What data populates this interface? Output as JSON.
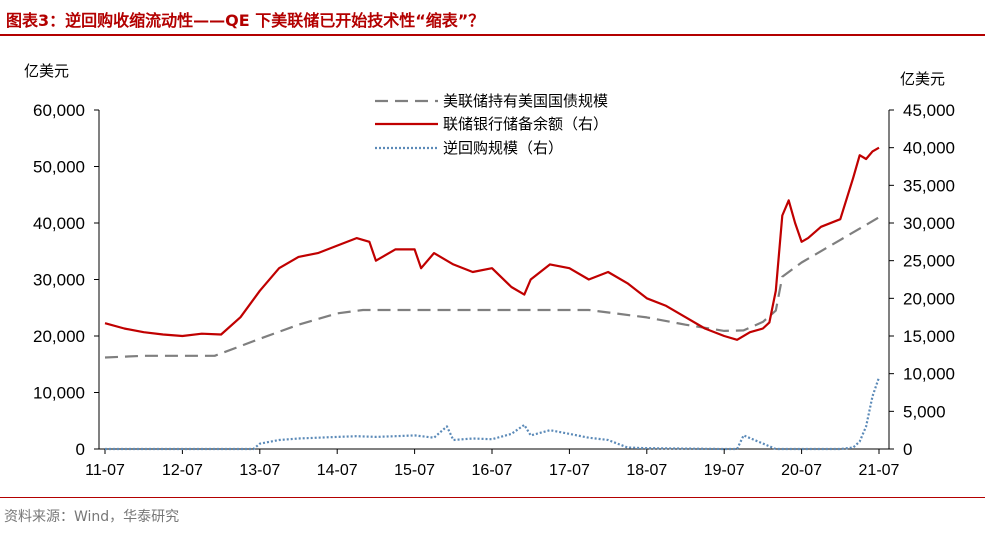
{
  "header": {
    "title": "图表3：逆回购收缩流动性——QE 下美联储已开始技术性“缩表”？"
  },
  "footer": {
    "source": "资料来源：Wind，华泰研究"
  },
  "chart_data": {
    "type": "line",
    "y_left": {
      "unit": "亿美元",
      "ylim": [
        0,
        60000
      ],
      "ticks": [
        "60,000",
        "50,000",
        "40,000",
        "30,000",
        "20,000",
        "10,000",
        "0"
      ]
    },
    "y_right": {
      "unit": "亿美元",
      "ylim": [
        0,
        45000
      ],
      "ticks": [
        "45,000",
        "40,000",
        "35,000",
        "30,000",
        "25,000",
        "20,000",
        "15,000",
        "10,000",
        "5,000",
        "0"
      ]
    },
    "x_ticks": [
      "11-07",
      "12-07",
      "13-07",
      "14-07",
      "15-07",
      "16-07",
      "17-07",
      "18-07",
      "19-07",
      "20-07",
      "21-07"
    ],
    "grid": false,
    "legend_position": "top-center",
    "series": [
      {
        "name": "美联储持有美国国债规模",
        "axis": "left",
        "style": "dashed",
        "color": "#7f7f7f",
        "x": [
          "2011-07",
          "2012-01",
          "2012-07",
          "2012-12",
          "2013-07",
          "2014-01",
          "2014-07",
          "2014-11",
          "2015-07",
          "2016-07",
          "2017-07",
          "2017-10",
          "2018-07",
          "2019-01",
          "2019-07",
          "2019-10",
          "2020-01",
          "2020-03",
          "2020-04",
          "2020-07",
          "2021-01",
          "2021-07"
        ],
        "values": [
          16200,
          16500,
          16500,
          16500,
          19500,
          22000,
          24000,
          24600,
          24600,
          24600,
          24600,
          24600,
          23300,
          22000,
          20900,
          21000,
          22500,
          24500,
          30500,
          33000,
          37000,
          41000
        ]
      },
      {
        "name": "联储银行储备余额（右）",
        "axis": "right",
        "style": "solid",
        "color": "#c00000",
        "x": [
          "2011-07",
          "2011-10",
          "2012-01",
          "2012-04",
          "2012-07",
          "2012-10",
          "2013-01",
          "2013-04",
          "2013-07",
          "2013-10",
          "2014-01",
          "2014-04",
          "2014-07",
          "2014-10",
          "2014-12",
          "2015-01",
          "2015-04",
          "2015-07",
          "2015-08",
          "2015-10",
          "2016-01",
          "2016-04",
          "2016-07",
          "2016-10",
          "2016-12",
          "2017-01",
          "2017-04",
          "2017-07",
          "2017-10",
          "2018-01",
          "2018-04",
          "2018-07",
          "2018-10",
          "2019-01",
          "2019-04",
          "2019-07",
          "2019-09",
          "2019-11",
          "2020-01",
          "2020-02",
          "2020-03",
          "2020-04",
          "2020-05",
          "2020-06",
          "2020-07",
          "2020-08",
          "2020-10",
          "2021-01",
          "2021-03",
          "2021-04",
          "2021-05",
          "2021-06",
          "2021-07"
        ],
        "values": [
          16700,
          16000,
          15500,
          15200,
          15000,
          15300,
          15200,
          17500,
          21000,
          24000,
          25500,
          26000,
          27000,
          28000,
          27500,
          25000,
          26500,
          26500,
          24000,
          26000,
          24500,
          23500,
          24000,
          21500,
          20500,
          22500,
          24500,
          24000,
          22500,
          23500,
          22000,
          20000,
          19000,
          17500,
          16000,
          15000,
          14500,
          15500,
          16000,
          16800,
          21000,
          31000,
          33000,
          30000,
          27500,
          28000,
          29500,
          30500,
          36000,
          39000,
          38500,
          39500,
          40000
        ]
      },
      {
        "name": "逆回购规模（右）",
        "axis": "right",
        "style": "dotted",
        "color": "#5b8ab8",
        "x": [
          "2011-07",
          "2013-06",
          "2013-07",
          "2013-10",
          "2014-01",
          "2014-04",
          "2014-07",
          "2014-10",
          "2015-01",
          "2015-04",
          "2015-07",
          "2015-10",
          "2015-12",
          "2016-01",
          "2016-04",
          "2016-07",
          "2016-10",
          "2016-12",
          "2017-01",
          "2017-04",
          "2017-07",
          "2017-10",
          "2018-01",
          "2018-04",
          "2018-07",
          "2019-07",
          "2019-09",
          "2019-10",
          "2020-03",
          "2020-06",
          "2021-01",
          "2021-03",
          "2021-04",
          "2021-05",
          "2021-06",
          "2021-07"
        ],
        "values": [
          0,
          0,
          700,
          1200,
          1400,
          1500,
          1600,
          1700,
          1600,
          1700,
          1800,
          1500,
          3000,
          1200,
          1400,
          1300,
          2000,
          3200,
          1800,
          2500,
          2000,
          1500,
          1200,
          200,
          100,
          0,
          0,
          1800,
          0,
          0,
          0,
          200,
          1000,
          3000,
          7000,
          9500
        ]
      }
    ]
  }
}
